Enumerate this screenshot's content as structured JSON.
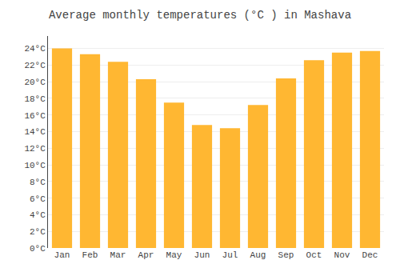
{
  "chart_data": {
    "type": "bar",
    "title": "Average monthly temperatures (°C ) in Mashava",
    "categories": [
      "Jan",
      "Feb",
      "Mar",
      "Apr",
      "May",
      "Jun",
      "Jul",
      "Aug",
      "Sep",
      "Oct",
      "Nov",
      "Dec"
    ],
    "values": [
      24.0,
      23.3,
      22.4,
      20.3,
      17.5,
      14.8,
      14.4,
      17.2,
      20.4,
      22.6,
      23.5,
      23.7
    ],
    "color": "#FFB732",
    "ylim": [
      0,
      25.5
    ],
    "yticks": [
      {
        "value": 0,
        "label": "0°C"
      },
      {
        "value": 2,
        "label": "2°C"
      },
      {
        "value": 4,
        "label": "4°C"
      },
      {
        "value": 6,
        "label": "6°C"
      },
      {
        "value": 8,
        "label": "8°C"
      },
      {
        "value": 10,
        "label": "10°C"
      },
      {
        "value": 12,
        "label": "12°C"
      },
      {
        "value": 14,
        "label": "14°C"
      },
      {
        "value": 16,
        "label": "16°C"
      },
      {
        "value": 18,
        "label": "18°C"
      },
      {
        "value": 20,
        "label": "20°C"
      },
      {
        "value": 22,
        "label": "22°C"
      },
      {
        "value": 24,
        "label": "24°C"
      }
    ],
    "grid": true
  }
}
